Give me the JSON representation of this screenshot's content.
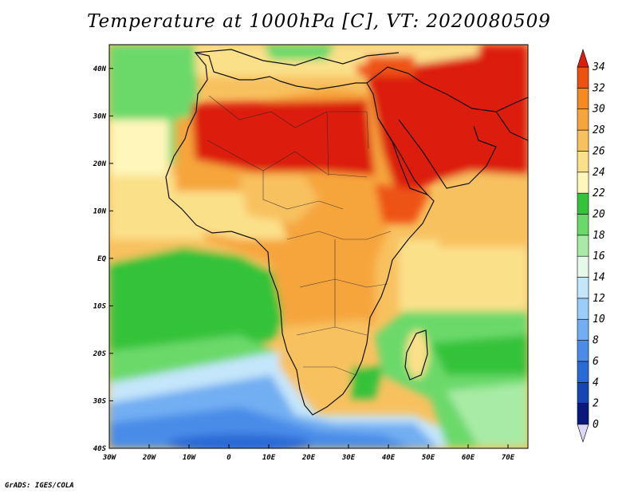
{
  "title": "Temperature at 1000hPa [C], VT: 2020080509",
  "credit": "GrADS: IGES/COLA",
  "map": {
    "lon_range": [
      -30,
      75
    ],
    "lat_range": [
      -40,
      45
    ],
    "lon_ticks": [
      {
        "value": -30,
        "label": "30W"
      },
      {
        "value": -20,
        "label": "20W"
      },
      {
        "value": -10,
        "label": "10W"
      },
      {
        "value": 0,
        "label": "0"
      },
      {
        "value": 10,
        "label": "10E"
      },
      {
        "value": 20,
        "label": "20E"
      },
      {
        "value": 30,
        "label": "30E"
      },
      {
        "value": 40,
        "label": "40E"
      },
      {
        "value": 50,
        "label": "50E"
      },
      {
        "value": 60,
        "label": "60E"
      },
      {
        "value": 70,
        "label": "70E"
      }
    ],
    "lat_ticks": [
      {
        "value": 40,
        "label": "40N"
      },
      {
        "value": 30,
        "label": "30N"
      },
      {
        "value": 20,
        "label": "20N"
      },
      {
        "value": 10,
        "label": "10N"
      },
      {
        "value": 0,
        "label": "EQ"
      },
      {
        "value": -10,
        "label": "10S"
      },
      {
        "value": -20,
        "label": "20S"
      },
      {
        "value": -30,
        "label": "30S"
      },
      {
        "value": -40,
        "label": "40S"
      }
    ]
  },
  "colorbar": {
    "levels": [
      0,
      2,
      4,
      6,
      8,
      10,
      12,
      14,
      16,
      18,
      20,
      22,
      24,
      26,
      28,
      30,
      32,
      34
    ],
    "colors": [
      "#0a1a7a",
      "#1446b4",
      "#2a6ad6",
      "#4a8ce8",
      "#72aef2",
      "#9acdf8",
      "#c4e6fb",
      "#e6f8ec",
      "#a8eba6",
      "#6ad96a",
      "#36c23a",
      "#fef6ba",
      "#fbe08a",
      "#f8c160",
      "#f6a53c",
      "#f58a22",
      "#ee5212",
      "#dc1e0c"
    ]
  }
}
